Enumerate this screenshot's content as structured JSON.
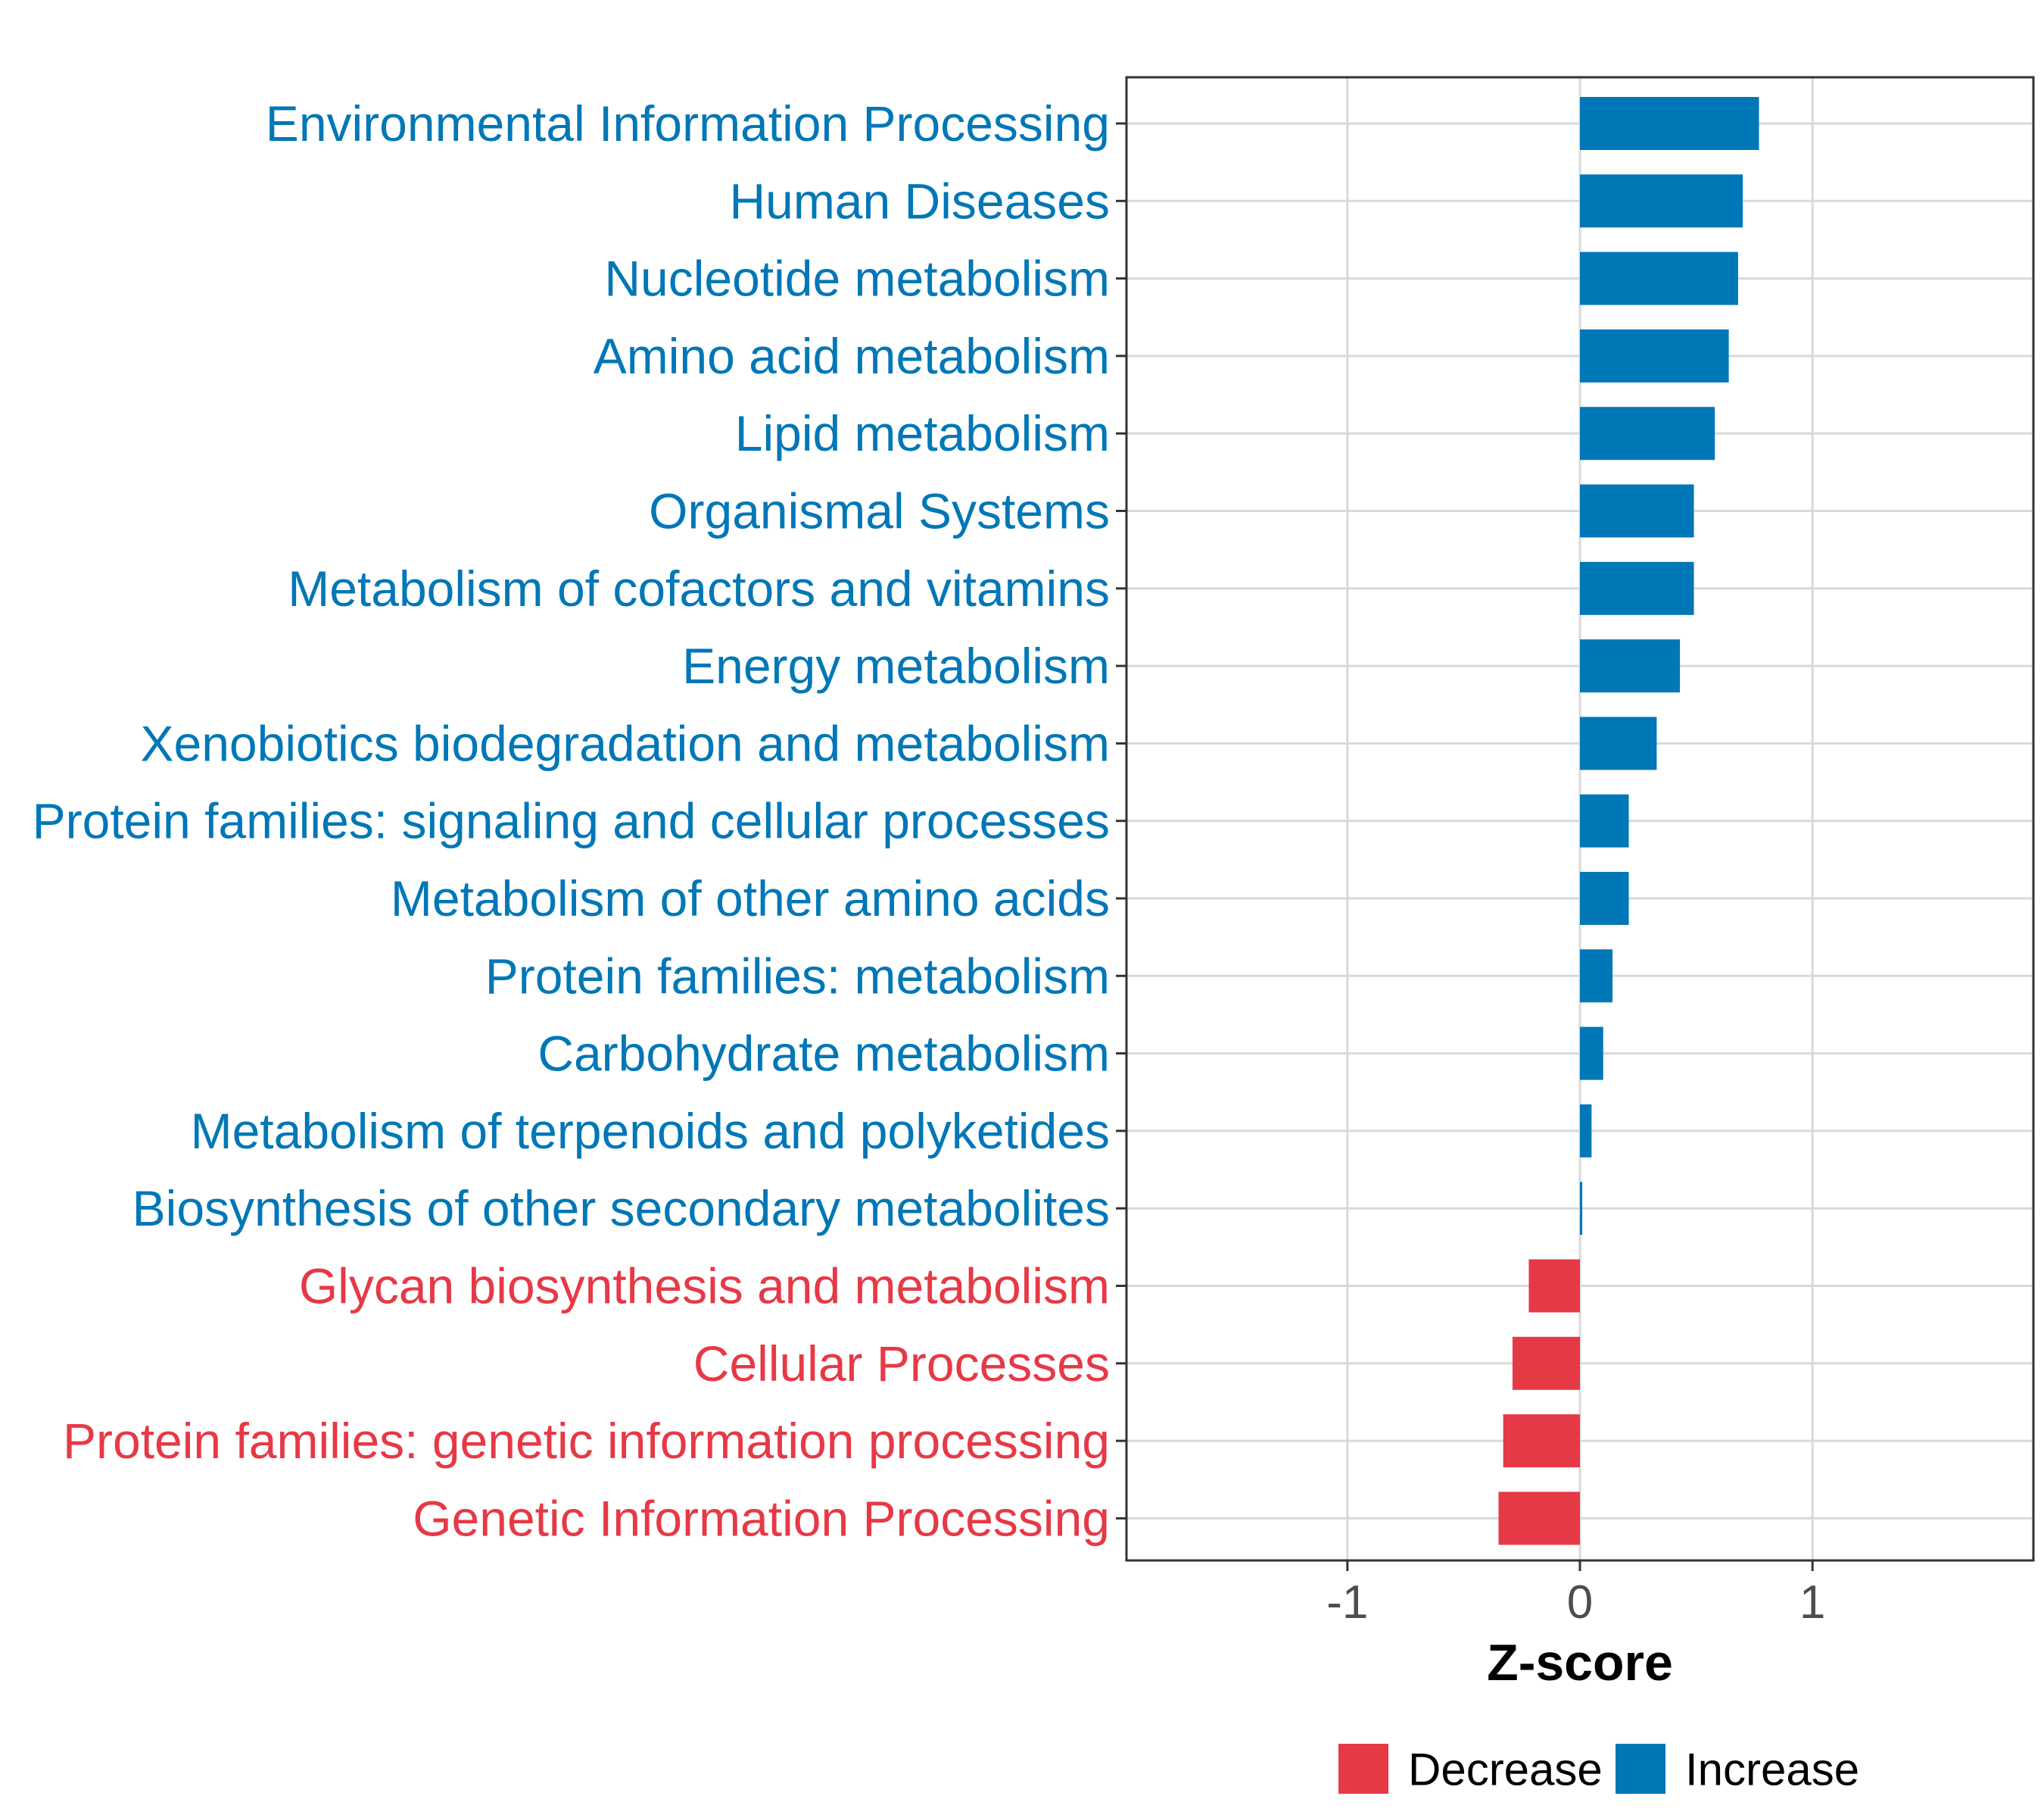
{
  "colors": {
    "decrease": "#E63946",
    "increase": "#0077B6",
    "grid": "#D9D9D9",
    "panel_border": "#333333",
    "tick_text": "#4D4D4D"
  },
  "chart_data": {
    "type": "bar",
    "orientation": "horizontal",
    "xlabel": "Z-score",
    "xlim": [
      -1.95,
      1.95
    ],
    "xticks": [
      -1,
      0,
      1
    ],
    "xtick_labels": [
      "-1",
      "0",
      "1"
    ],
    "grid": true,
    "legend_position": "bottom",
    "legend": [
      {
        "name": "Decrease",
        "color_key": "decrease"
      },
      {
        "name": "Increase",
        "color_key": "increase"
      }
    ],
    "categories": [
      "Environmental Information Processing",
      "Human Diseases",
      "Nucleotide metabolism",
      "Amino acid metabolism",
      "Lipid metabolism",
      "Organismal Systems",
      "Metabolism of cofactors and vitamins",
      "Energy metabolism",
      "Xenobiotics biodegradation and metabolism",
      "Protein families: signaling and cellular processes",
      "Metabolism of other amino acids",
      "Protein families: metabolism",
      "Carbohydrate metabolism",
      "Metabolism of terpenoids and polyketides",
      "Biosynthesis of other secondary metabolites",
      "Glycan biosynthesis and metabolism",
      "Cellular Processes",
      "Protein families: genetic information processing",
      "Genetic Information Processing"
    ],
    "values": [
      0.77,
      0.7,
      0.68,
      0.64,
      0.58,
      0.49,
      0.49,
      0.43,
      0.33,
      0.21,
      0.21,
      0.14,
      0.1,
      0.05,
      0.01,
      -0.22,
      -0.29,
      -0.33,
      -0.35
    ]
  }
}
